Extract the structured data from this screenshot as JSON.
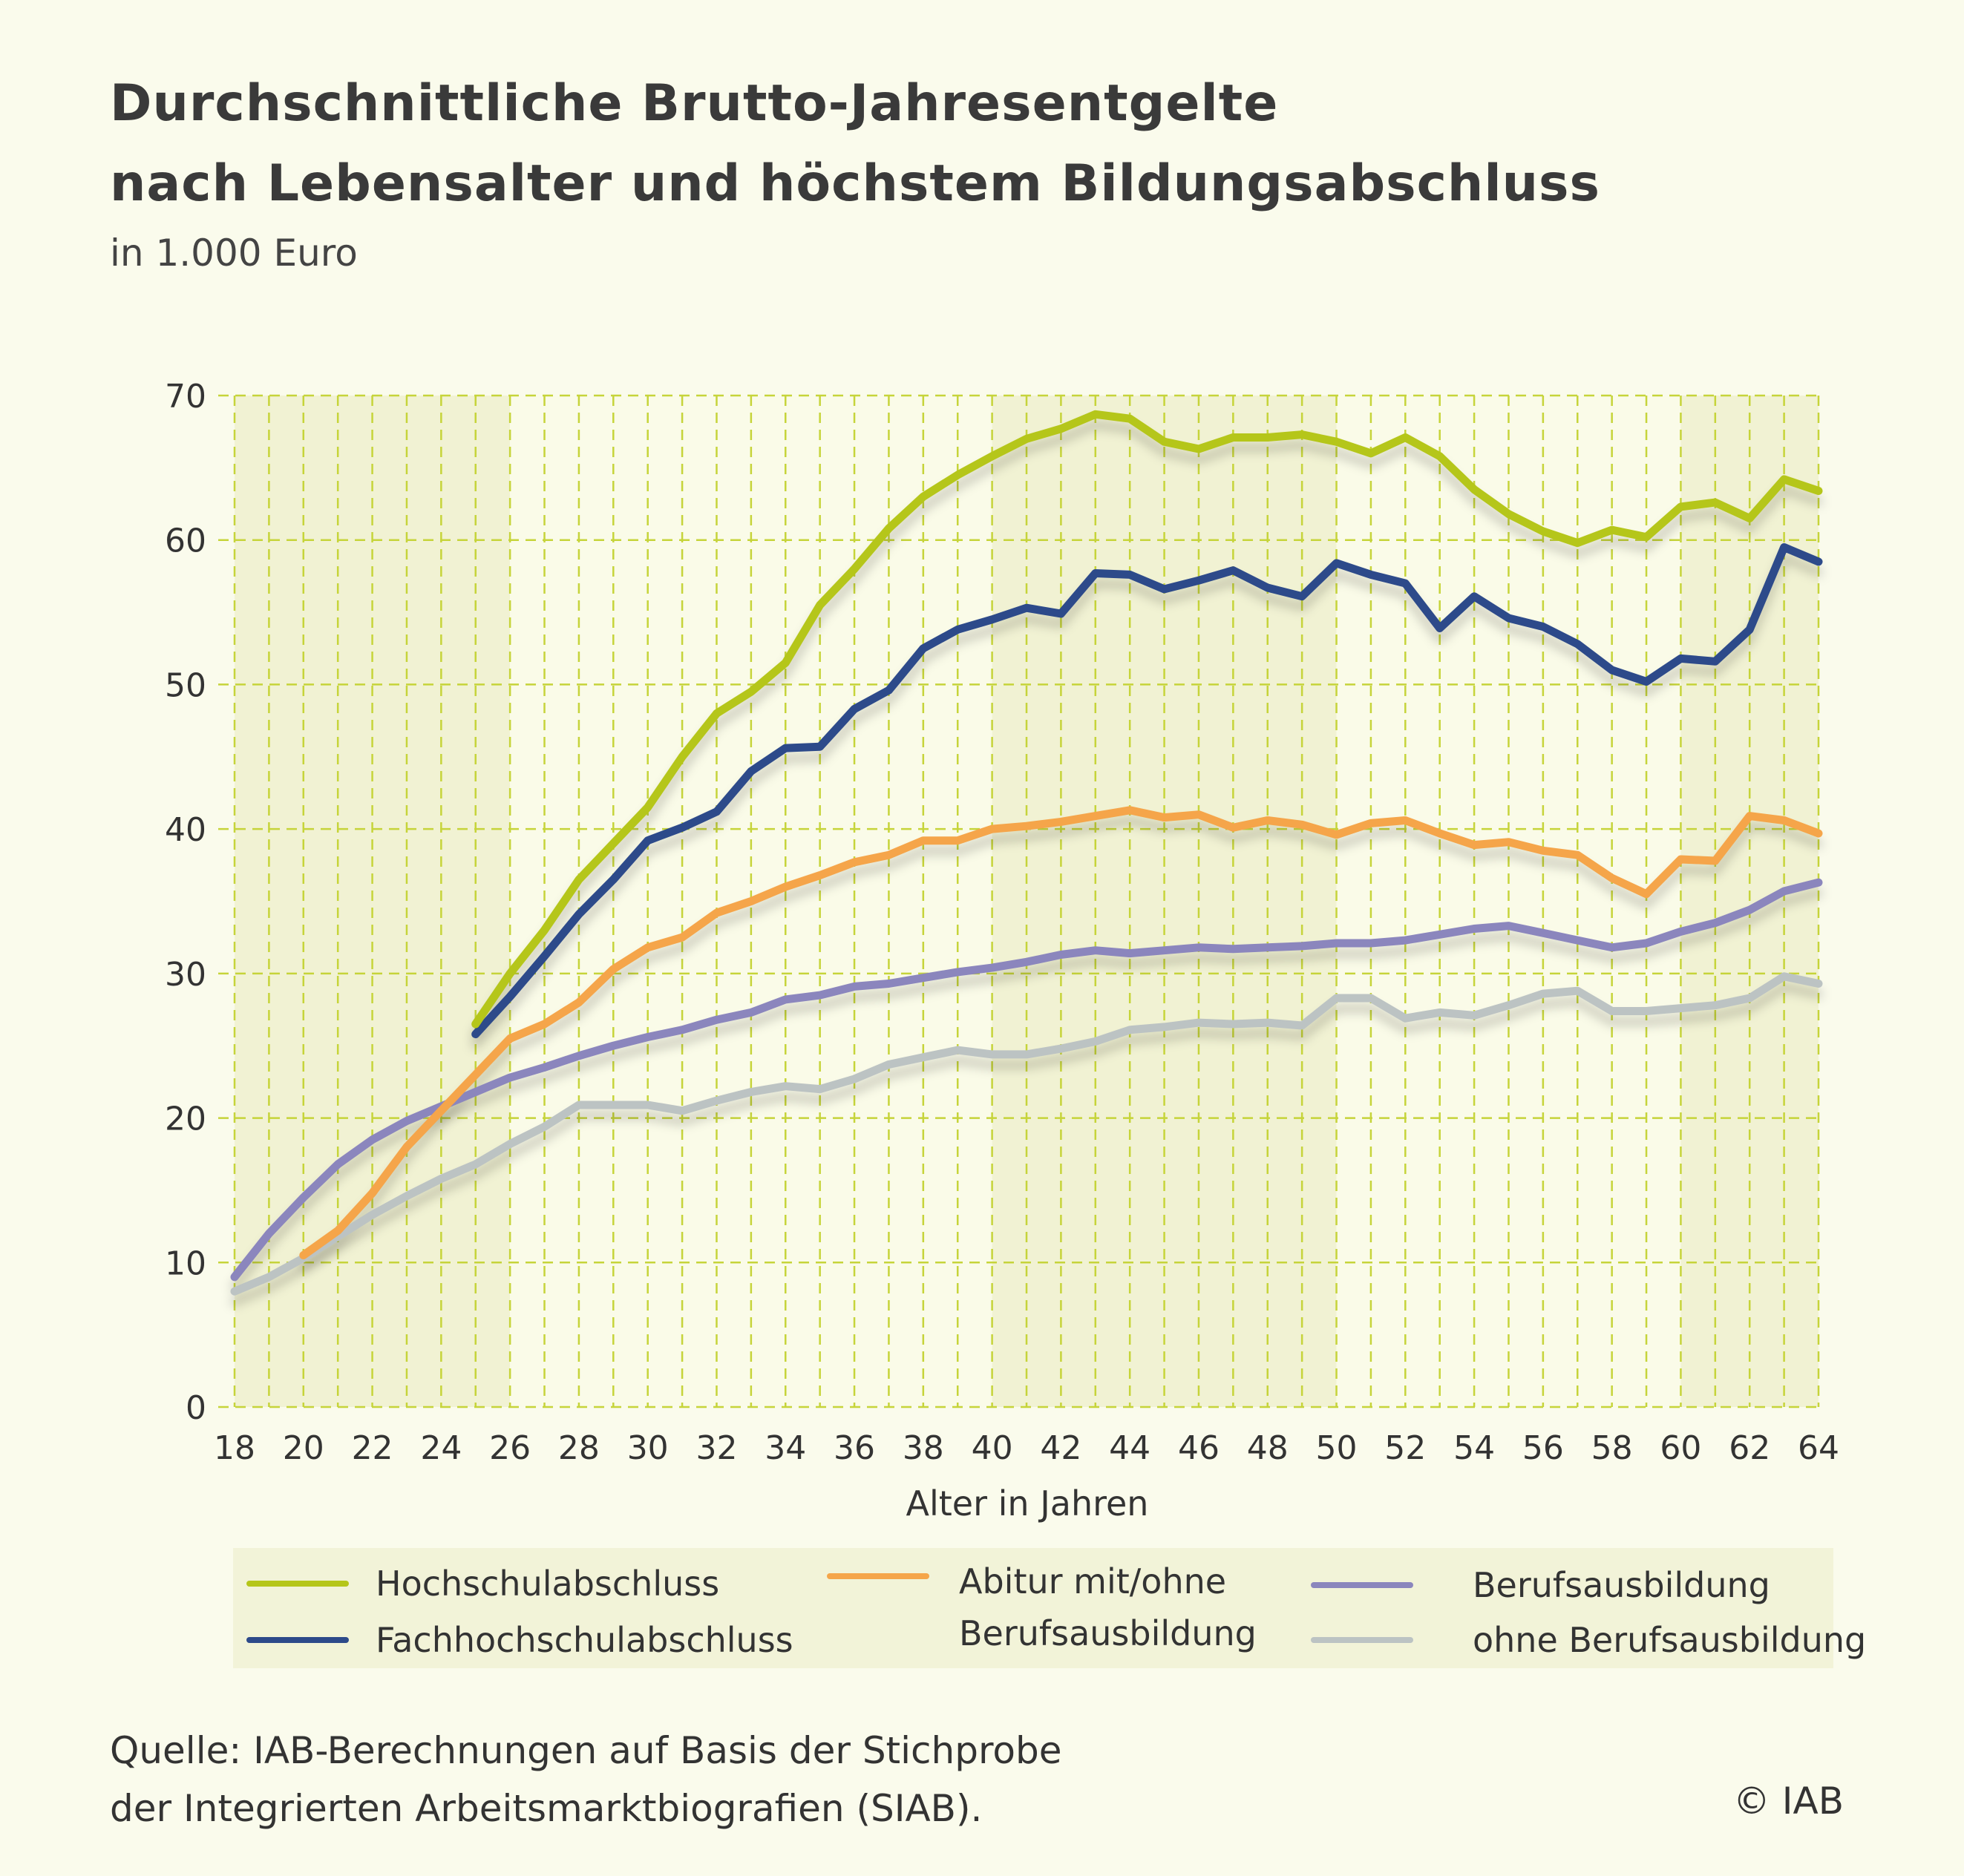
{
  "header": {
    "title_line1": "Durchschnittliche Brutto-Jahresentgelte",
    "title_line2": "nach Lebensalter und höchstem Bildungsabschluss",
    "subtitle": "in 1.000 Euro"
  },
  "footer": {
    "source_line1": "Quelle: IAB-Berechnungen auf Basis der Stichprobe",
    "source_line2": "der Integrierten Arbeitsmarktbiografien (SIAB).",
    "copyright": "© IAB"
  },
  "legend": {
    "items": [
      {
        "label": "Hochschulabschluss"
      },
      {
        "label": "Fachhochschulabschluss"
      },
      {
        "label_line1": "Abitur mit/ohne",
        "label_line2": "Berufsausbildung"
      },
      {
        "label": "Berufsausbildung"
      },
      {
        "label": "ohne Berufsausbildung"
      }
    ]
  },
  "chart_data": {
    "type": "line",
    "title": "Durchschnittliche Brutto-Jahresentgelte nach Lebensalter und höchstem Bildungsabschluss",
    "subtitle": "in 1.000 Euro",
    "xlabel": "Alter in Jahren",
    "ylabel": "",
    "xlim": [
      18,
      64
    ],
    "ylim": [
      0,
      70
    ],
    "x_ticks": [
      18,
      20,
      22,
      24,
      26,
      28,
      30,
      32,
      34,
      36,
      38,
      40,
      42,
      44,
      46,
      48,
      50,
      52,
      54,
      56,
      58,
      60,
      62,
      64
    ],
    "y_ticks": [
      0,
      10,
      20,
      30,
      40,
      50,
      60,
      70
    ],
    "grid": true,
    "legend_position": "bottom",
    "series": [
      {
        "name": "Hochschulabschluss",
        "color": "#b5c61a",
        "x_start": 25,
        "values": [
          26.5,
          30.0,
          33.0,
          36.5,
          39.0,
          41.5,
          45.0,
          48.0,
          49.5,
          51.5,
          55.5,
          58.0,
          60.8,
          63.0,
          64.5,
          65.8,
          67.0,
          67.7,
          68.7,
          68.4,
          66.8,
          66.3,
          67.1,
          67.1,
          67.3,
          66.8,
          66.0,
          67.1,
          65.8,
          63.5,
          61.8,
          60.6,
          59.8,
          60.7,
          60.2,
          62.3,
          62.6,
          61.5,
          64.2,
          63.4
        ]
      },
      {
        "name": "Fachhochschulabschluss",
        "color": "#2d4a8a",
        "x_start": 25,
        "values": [
          25.8,
          28.4,
          31.2,
          34.1,
          36.5,
          39.2,
          40.1,
          41.2,
          44.0,
          45.6,
          45.7,
          48.3,
          49.6,
          52.5,
          53.8,
          54.5,
          55.3,
          54.9,
          57.7,
          57.6,
          56.6,
          57.2,
          57.9,
          56.7,
          56.1,
          58.4,
          57.6,
          57.0,
          53.9,
          56.1,
          54.6,
          54.0,
          52.8,
          51.0,
          50.2,
          51.8,
          51.6,
          53.8,
          59.5,
          58.5
        ]
      },
      {
        "name": "Abitur mit/ohne Berufsausbildung",
        "color": "#f5a54a",
        "x_start": 20,
        "values": [
          10.5,
          12.2,
          14.8,
          18.0,
          20.5,
          23.0,
          25.5,
          26.5,
          28.0,
          30.3,
          31.8,
          32.5,
          34.2,
          35.0,
          36.0,
          36.8,
          37.7,
          38.2,
          39.2,
          39.2,
          40.0,
          40.2,
          40.5,
          40.9,
          41.3,
          40.8,
          41.0,
          40.1,
          40.6,
          40.3,
          39.6,
          40.4,
          40.6,
          39.7,
          38.9,
          39.1,
          38.5,
          38.2,
          36.6,
          35.5,
          37.9,
          37.8,
          40.9,
          40.6,
          39.7
        ]
      },
      {
        "name": "Berufsausbildung",
        "color": "#8b86bd",
        "x_start": 18,
        "values": [
          9.0,
          12.0,
          14.5,
          16.8,
          18.5,
          19.8,
          20.8,
          21.8,
          22.8,
          23.5,
          24.3,
          25.0,
          25.6,
          26.1,
          26.8,
          27.3,
          28.2,
          28.5,
          29.1,
          29.3,
          29.7,
          30.1,
          30.4,
          30.8,
          31.3,
          31.6,
          31.4,
          31.6,
          31.8,
          31.7,
          31.8,
          31.9,
          32.1,
          32.1,
          32.3,
          32.7,
          33.1,
          33.3,
          32.8,
          32.3,
          31.8,
          32.1,
          32.9,
          33.5,
          34.4,
          35.7,
          36.3
        ]
      },
      {
        "name": "ohne Berufsausbildung",
        "color": "#bcc3c3",
        "x_start": 18,
        "values": [
          8.0,
          9.0,
          10.3,
          11.8,
          13.3,
          14.6,
          15.8,
          16.8,
          18.2,
          19.4,
          20.9,
          20.9,
          20.9,
          20.5,
          21.2,
          21.8,
          22.2,
          22.0,
          22.7,
          23.7,
          24.2,
          24.7,
          24.4,
          24.4,
          24.8,
          25.3,
          26.1,
          26.3,
          26.6,
          26.5,
          26.6,
          26.4,
          28.3,
          28.3,
          26.9,
          27.3,
          27.1,
          27.8,
          28.6,
          28.8,
          27.4,
          27.4,
          27.6,
          27.8,
          28.3,
          29.8,
          29.3
        ]
      }
    ]
  }
}
